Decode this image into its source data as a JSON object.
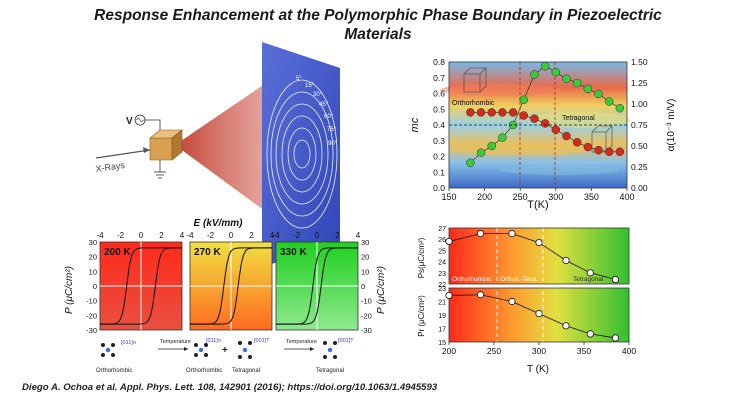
{
  "title_line1": "Response Enhancement at the Polymorphic Phase Boundary in Piezoelectric",
  "title_line2": "Materials",
  "citation": "Diego A. Ochoa et al. Appl. Phys. Lett. 108, 142901 (2016); https://doi.org/10.1063/1.4945593",
  "schematic": {
    "source_label": "V",
    "beam_label": "X-Rays",
    "ring_labels": [
      "5°",
      "15°",
      "30°",
      "45°",
      "60°",
      "75°",
      "90°"
    ]
  },
  "hysteresis": {
    "e_axis_label": "E (kV/mm)",
    "p_axis_label": "P (μC/cm²)",
    "e_ticks": [
      "-4",
      "-2",
      "0",
      "2",
      "4"
    ],
    "p_ticks": [
      "30",
      "20",
      "10",
      "0",
      "-10",
      "-20",
      "-30"
    ],
    "panels": [
      {
        "temp": "200 K",
        "color_top": "#ff2a1a",
        "color_bottom": "#e83a2a"
      },
      {
        "temp": "270 K",
        "color_top": "#ffe040",
        "color_bottom": "#ff7a20"
      },
      {
        "temp": "330 K",
        "color_top": "#1fd01f",
        "color_bottom": "#7fe07f"
      }
    ],
    "phase_labels": [
      "Orthorhombic",
      "Orthorhombic",
      "Tetragonal",
      "Tetragonal"
    ],
    "direction_labels": [
      "[011]o",
      "[011]o",
      "[001]T",
      "[001]T"
    ],
    "temperature_label": "Temperature"
  },
  "chart_data": [
    {
      "type": "scatter",
      "xlabel": "T(K)",
      "ylabel": "mc",
      "y2label": "α(10⁻³ m/V)",
      "xlim": [
        150,
        400
      ],
      "ylim": [
        0,
        0.8
      ],
      "y2lim": [
        0,
        1.5
      ],
      "x_ticks": [
        150,
        200,
        250,
        300,
        350,
        400
      ],
      "y_ticks": [
        0.0,
        0.1,
        0.2,
        0.3,
        0.4,
        0.5,
        0.6,
        0.7,
        0.8
      ],
      "y2_ticks": [
        0.0,
        0.25,
        0.5,
        0.75,
        1.0,
        1.25,
        1.5
      ],
      "region_labels": [
        "Orthorhombic",
        "Tetragonal"
      ],
      "series": [
        {
          "color": "#d42a1a",
          "axis": "left",
          "x": [
            180,
            195,
            210,
            225,
            240,
            255,
            270,
            285,
            300,
            315,
            330,
            345,
            360,
            375,
            390
          ],
          "y": [
            0.48,
            0.48,
            0.48,
            0.48,
            0.48,
            0.46,
            0.44,
            0.41,
            0.37,
            0.33,
            0.29,
            0.26,
            0.24,
            0.23,
            0.23
          ]
        },
        {
          "color": "#3acb3a",
          "axis": "right",
          "x": [
            180,
            195,
            210,
            225,
            240,
            255,
            270,
            285,
            300,
            315,
            330,
            345,
            360,
            375,
            390
          ],
          "y": [
            0.3,
            0.42,
            0.5,
            0.6,
            0.75,
            1.05,
            1.35,
            1.45,
            1.38,
            1.3,
            1.25,
            1.18,
            1.12,
            1.03,
            0.95
          ]
        }
      ]
    },
    {
      "type": "line",
      "ylabel": "Ps(μC/cm²)",
      "xlim": [
        200,
        400
      ],
      "ylim": [
        22,
        27
      ],
      "y_ticks": [
        22,
        23,
        24,
        25,
        26,
        27
      ],
      "region_labels": [
        "Orthorhombic",
        "Orthor.-Tetra.",
        "Tetragonal"
      ],
      "series": [
        {
          "x": [
            200,
            235,
            270,
            300,
            330,
            357,
            385
          ],
          "y": [
            25.8,
            26.5,
            26.5,
            25.7,
            24.1,
            23.0,
            22.4
          ]
        }
      ]
    },
    {
      "type": "line",
      "xlabel": "T (K)",
      "ylabel": "Pr (μC/cm²)",
      "xlim": [
        200,
        400
      ],
      "ylim": [
        15,
        23
      ],
      "x_ticks": [
        200,
        250,
        300,
        350,
        400
      ],
      "y_ticks": [
        15,
        17,
        19,
        21,
        23
      ],
      "series": [
        {
          "x": [
            200,
            235,
            270,
            300,
            330,
            357,
            385
          ],
          "y": [
            21.9,
            22.0,
            21.0,
            19.2,
            17.4,
            16.2,
            15.6
          ]
        }
      ]
    }
  ]
}
